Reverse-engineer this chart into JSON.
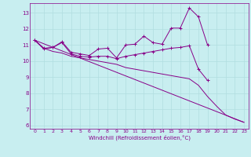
{
  "xlabel": "Windchill (Refroidissement éolien,°C)",
  "background_color": "#c8eef0",
  "grid_color": "#b0dde0",
  "line_color": "#880088",
  "xlim": [
    -0.5,
    23.5
  ],
  "ylim": [
    5.8,
    13.6
  ],
  "yticks": [
    6,
    7,
    8,
    9,
    10,
    11,
    12,
    13
  ],
  "xticks": [
    0,
    1,
    2,
    3,
    4,
    5,
    6,
    7,
    8,
    9,
    10,
    11,
    12,
    13,
    14,
    15,
    16,
    17,
    18,
    19,
    20,
    21,
    22,
    23
  ],
  "series": [
    {
      "x": [
        0,
        1,
        2,
        3,
        4,
        5,
        6,
        7,
        8,
        9,
        10,
        11,
        12,
        13,
        14,
        15,
        16,
        17,
        18,
        19,
        20,
        21,
        22,
        23
      ],
      "y": [
        11.3,
        10.8,
        10.85,
        11.2,
        10.55,
        10.45,
        10.35,
        10.75,
        10.8,
        10.2,
        11.0,
        11.05,
        11.55,
        11.15,
        11.05,
        12.05,
        12.05,
        13.3,
        12.75,
        11.0,
        null,
        null,
        null,
        null
      ]
    },
    {
      "x": [
        0,
        1,
        2,
        3,
        4,
        5,
        6,
        7,
        8,
        9,
        10,
        11,
        12,
        13,
        14,
        15,
        16,
        17,
        18,
        19,
        20,
        21,
        22,
        23
      ],
      "y": [
        11.3,
        10.75,
        10.85,
        11.15,
        10.45,
        10.3,
        10.25,
        10.3,
        10.3,
        10.15,
        10.3,
        10.4,
        10.5,
        10.6,
        10.7,
        10.8,
        10.85,
        10.95,
        9.5,
        8.8,
        null,
        null,
        null,
        null
      ]
    },
    {
      "x": [
        0,
        23
      ],
      "y": [
        11.3,
        6.2
      ]
    },
    {
      "x": [
        0,
        1,
        2,
        3,
        4,
        5,
        6,
        7,
        8,
        9,
        10,
        11,
        12,
        13,
        14,
        15,
        16,
        17,
        18,
        19,
        20,
        21,
        22,
        23
      ],
      "y": [
        11.3,
        10.8,
        10.6,
        10.5,
        10.3,
        10.2,
        10.1,
        10.0,
        9.9,
        9.8,
        9.6,
        9.5,
        9.4,
        9.3,
        9.2,
        9.1,
        9.0,
        8.9,
        8.5,
        7.8,
        7.2,
        6.65,
        6.4,
        6.2
      ]
    }
  ]
}
